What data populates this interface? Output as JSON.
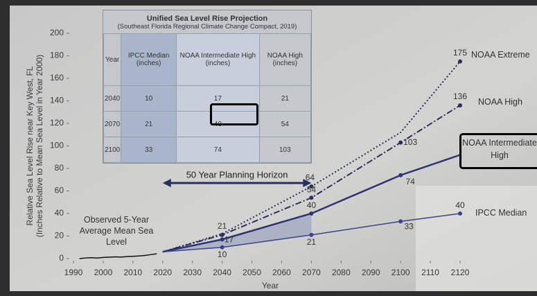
{
  "table": {
    "title": "Unified Sea Level Rise Projection",
    "subtitle": "(Southeast Florida Regional Climate Change Compact, 2019)",
    "columns": [
      "Year",
      "IPCC Median (inches)",
      "NOAA Intermediate High (inches)",
      "NOAA High (inches)"
    ],
    "rows": [
      [
        2040,
        10,
        17,
        21
      ],
      [
        2070,
        21,
        40,
        54
      ],
      [
        2100,
        33,
        74,
        103
      ]
    ]
  },
  "chart_data": {
    "type": "line",
    "xlabel": "Year",
    "ylabel": [
      "Relative Sea Level Rise near Key West, FL",
      "(Inches Relative to Mean Sea Level in Year 2000)"
    ],
    "xlim": [
      1990,
      2120
    ],
    "xticks": [
      1990,
      2000,
      2010,
      2020,
      2030,
      2040,
      2050,
      2060,
      2070,
      2080,
      2090,
      2100,
      2110,
      2120
    ],
    "ylim": [
      0,
      200
    ],
    "yticks": [
      0,
      20,
      40,
      60,
      80,
      100,
      120,
      140,
      160,
      180,
      200
    ],
    "annotation": {
      "text": "50 Year Planning Horizon",
      "x": [
        2020,
        2070
      ]
    },
    "series": [
      {
        "name": "Observed 5-Year Average Mean Sea Level",
        "color": "#111111",
        "x": [
          1992,
          1994,
          1996,
          1998,
          2000,
          2002,
          2004,
          2006,
          2008,
          2010,
          2012,
          2014,
          2016,
          2018
        ],
        "values": [
          0,
          0.5,
          0.8,
          0.5,
          1,
          1.2,
          1.5,
          1.3,
          1.8,
          2,
          2.3,
          2.8,
          3.5,
          4.2
        ],
        "labeled": []
      },
      {
        "name": "NOAA Extreme",
        "color": "#2b2f5e",
        "x": [
          2020,
          2040,
          2070,
          2100,
          2120
        ],
        "values": [
          6,
          22,
          64,
          112,
          175
        ],
        "labeled": [
          2,
          4
        ]
      },
      {
        "name": "NOAA High",
        "color": "#2b2f5e",
        "x": [
          2020,
          2040,
          2070,
          2100,
          2120
        ],
        "values": [
          6,
          21,
          54,
          103,
          136
        ],
        "labeled": [
          1,
          2,
          3,
          4
        ]
      },
      {
        "name": "NOAA Intermediate High",
        "color": "#2e3372",
        "x": [
          2020,
          2040,
          2070,
          2100,
          2120
        ],
        "values": [
          6,
          17,
          40,
          74,
          92
        ],
        "labeled": [
          1,
          2,
          3
        ]
      },
      {
        "name": "IPCC Median",
        "color": "#3c4287",
        "x": [
          2020,
          2040,
          2070,
          2100,
          2120
        ],
        "values": [
          6,
          10,
          21,
          33,
          40
        ],
        "labeled": [
          1,
          2,
          3,
          4
        ]
      }
    ]
  }
}
